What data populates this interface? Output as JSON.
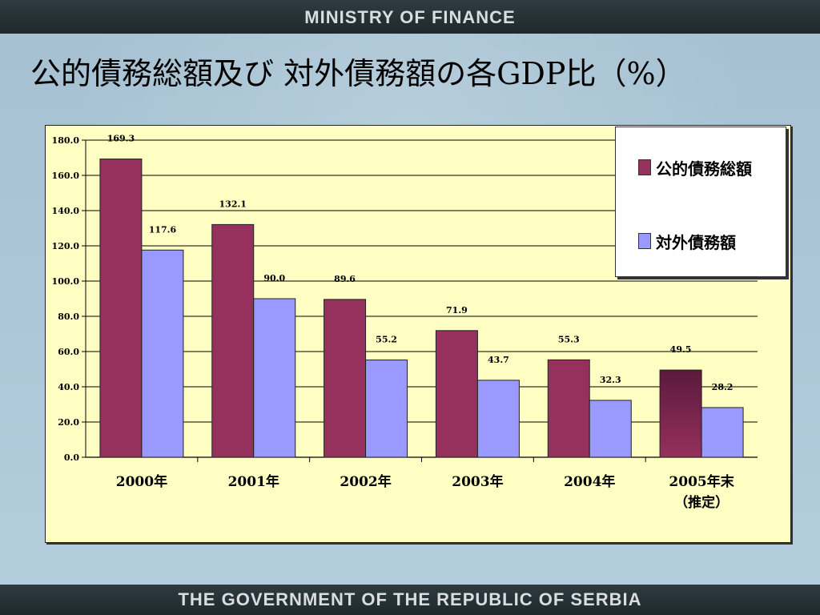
{
  "header": {
    "text": "MINISTRY OF FINANCE"
  },
  "footer": {
    "text": "THE GOVERNMENT OF THE REPUBLIC OF SERBIA"
  },
  "colors": {
    "series_1": "#96305c",
    "series_1_highlight": "#5a1a3c",
    "series_2": "#9999ff",
    "plot_background": "#ffffc4"
  },
  "chart_data": {
    "type": "bar",
    "title": "公的債務総額及び 対外債務額の各GDP比（%）",
    "categories": [
      "2000年",
      "2001年",
      "2002年",
      "2003年",
      "2004年",
      "2005年末\n（推定）"
    ],
    "series": [
      {
        "name": "公的債務総額",
        "values": [
          169.3,
          132.1,
          89.6,
          71.9,
          55.3,
          49.5
        ]
      },
      {
        "name": "対外債務額",
        "values": [
          117.6,
          90.0,
          55.2,
          43.7,
          32.3,
          28.2
        ]
      }
    ],
    "ylim": [
      0,
      180
    ],
    "yticks": [
      "0.0",
      "20.0",
      "40.0",
      "60.0",
      "80.0",
      "100.0",
      "120.0",
      "140.0",
      "160.0",
      "180.0"
    ],
    "value_labels": [
      [
        "169.3",
        "132.1",
        "89.6",
        "71.9",
        "55.3",
        "49.5"
      ],
      [
        "117.6",
        "90.0",
        "55.2",
        "43.7",
        "32.3",
        "28.2"
      ]
    ],
    "grid": true,
    "legend_position": "top-right"
  }
}
